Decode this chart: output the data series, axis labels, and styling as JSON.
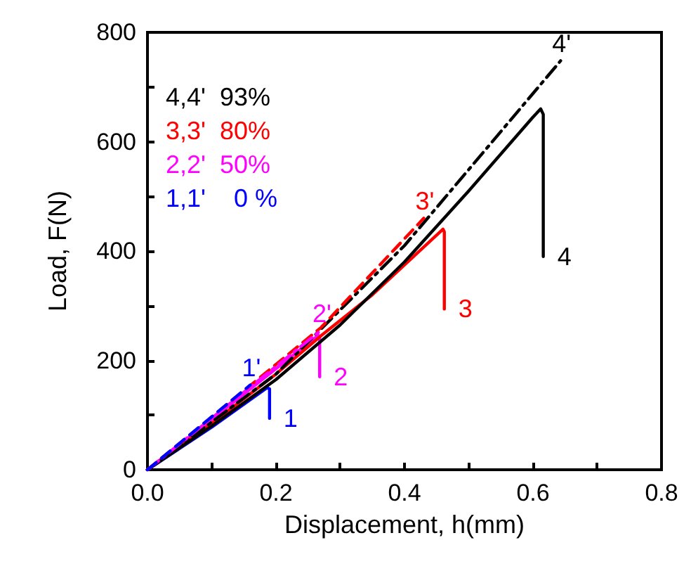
{
  "chart_data": {
    "type": "line",
    "xlabel": "Displacement, h(mm)",
    "ylabel": "Load, F(N)",
    "xlim": [
      0,
      0.8
    ],
    "ylim": [
      0,
      800
    ],
    "xticks": [
      {
        "value": 0,
        "label": "0.0"
      },
      {
        "value": 0.1,
        "label": null
      },
      0.2,
      {
        "value": 0.3,
        "label": null
      },
      0.4,
      {
        "value": 0.5,
        "label": null
      },
      0.6,
      {
        "value": 0.7,
        "label": null
      },
      0.8
    ],
    "yticks": [
      0,
      {
        "value": 100,
        "label": null
      },
      200,
      {
        "value": 300,
        "label": null
      },
      400,
      {
        "value": 500,
        "label": null
      },
      600,
      {
        "value": 700,
        "label": null
      },
      800
    ],
    "grid": false,
    "legend": false,
    "marker": "none",
    "annotations": [
      "4,4'  93%",
      "3,3'  80%",
      "2,2'  50%",
      "1,1'    0 %"
    ],
    "series": [
      {
        "name": "4",
        "color": "#000000",
        "line_style": "solid",
        "x": [
          0,
          0.1,
          0.2,
          0.3,
          0.4,
          0.5,
          0.6,
          0.612,
          0.616,
          0.616
        ],
        "values": [
          0,
          80,
          165,
          265,
          380,
          510,
          645,
          660,
          650,
          390
        ]
      },
      {
        "name": "4'",
        "color": "#000000",
        "line_style": "dashdot",
        "x": [
          0,
          0.2,
          0.4,
          0.643
        ],
        "values": [
          0,
          175,
          410,
          748
        ]
      },
      {
        "name": "3",
        "color": "#ff0000",
        "line_style": "solid",
        "x": [
          0,
          0.1,
          0.2,
          0.27,
          0.35,
          0.46,
          0.462,
          0.462
        ],
        "values": [
          0,
          85,
          175,
          245,
          320,
          440,
          435,
          294
        ]
      },
      {
        "name": "3'",
        "color": "#ff0000",
        "line_style": "dashed",
        "x": [
          0,
          0.27,
          0.43
        ],
        "values": [
          0,
          260,
          460
        ]
      },
      {
        "name": "2",
        "color": "#ff00ff",
        "line_style": "solid",
        "x": [
          0,
          0.1,
          0.2,
          0.266,
          0.268,
          0.268
        ],
        "values": [
          0,
          92,
          185,
          246,
          240,
          170
        ]
      },
      {
        "name": "2'",
        "color": "#ff00ff",
        "line_style": "dashdot",
        "x": [
          0,
          0.27
        ],
        "values": [
          0,
          255
        ]
      },
      {
        "name": "1",
        "color": "#0000ff",
        "line_style": "solid",
        "x": [
          0,
          0.1,
          0.186,
          0.19,
          0.19
        ],
        "values": [
          0,
          78,
          150,
          148,
          94
        ]
      },
      {
        "name": "1'",
        "color": "#0000ff",
        "line_style": "dashed",
        "x": [
          0,
          0.16
        ],
        "values": [
          0,
          155
        ]
      }
    ]
  }
}
